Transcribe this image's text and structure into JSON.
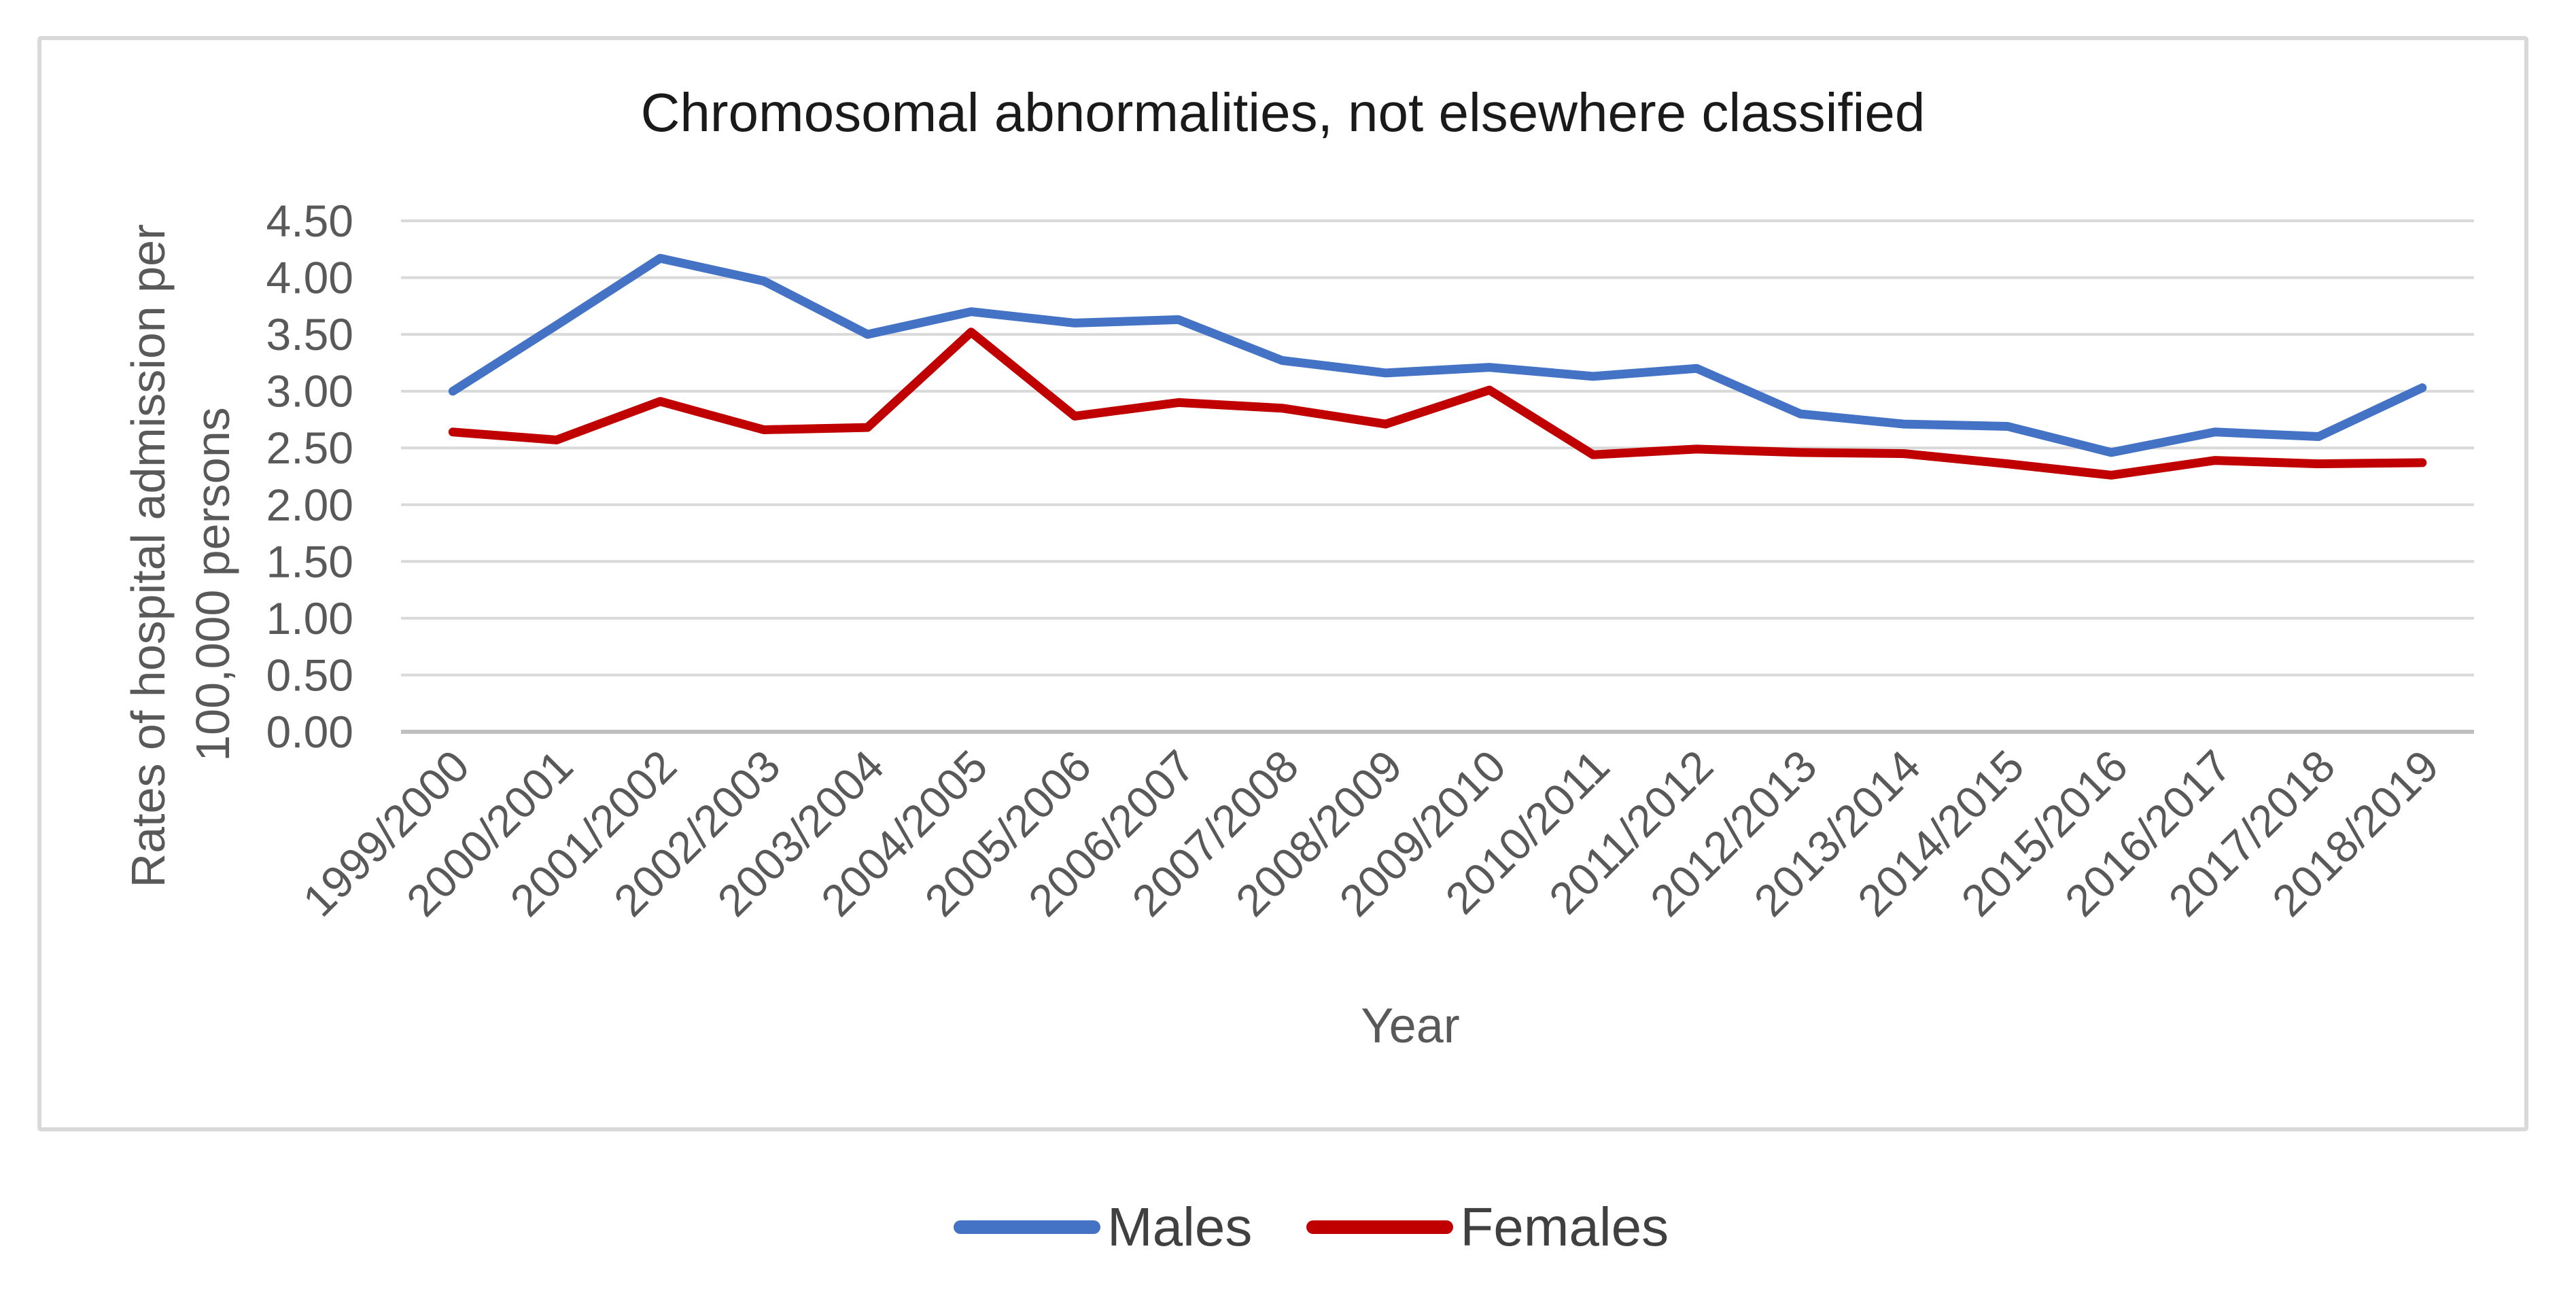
{
  "chart_data": {
    "type": "line",
    "title": "Chromosomal abnormalities, not elsewhere classified",
    "xlabel": "Year",
    "ylabel": "Rates of hospital admission per 100,000 persons",
    "ylabel_lines": [
      "Rates of hospital admission per",
      "100,000 persons"
    ],
    "categories": [
      "1999/2000",
      "2000/2001",
      "2001/2002",
      "2002/2003",
      "2003/2004",
      "2004/2005",
      "2005/2006",
      "2006/2007",
      "2007/2008",
      "2008/2009",
      "2009/2010",
      "2010/2011",
      "2011/2012",
      "2012/2013",
      "2013/2014",
      "2014/2015",
      "2015/2016",
      "2016/2017",
      "2017/2018",
      "2018/2019"
    ],
    "series": [
      {
        "name": "Males",
        "color": "#4472C4",
        "values": [
          3.0,
          3.58,
          4.17,
          3.97,
          3.5,
          3.7,
          3.6,
          3.63,
          3.27,
          3.16,
          3.21,
          3.13,
          3.2,
          2.8,
          2.71,
          2.69,
          2.46,
          2.64,
          2.6,
          3.03
        ]
      },
      {
        "name": "Females",
        "color": "#C00000",
        "values": [
          2.64,
          2.57,
          2.91,
          2.66,
          2.68,
          3.52,
          2.78,
          2.9,
          2.85,
          2.71,
          3.01,
          2.44,
          2.49,
          2.46,
          2.45,
          2.36,
          2.26,
          2.39,
          2.36,
          2.37
        ]
      }
    ],
    "ylim": [
      0,
      4.5
    ],
    "ytick_step": 0.5,
    "yticks": [
      "0.00",
      "0.50",
      "1.00",
      "1.50",
      "2.00",
      "2.50",
      "3.00",
      "3.50",
      "4.00",
      "4.50"
    ],
    "grid": true,
    "legend_position": "bottom",
    "style": {
      "grid_color": "#D9D9D9",
      "axis_color": "#BFBFBF",
      "tick_label_color": "#595959",
      "title_color": "#1A1A1A",
      "axis_title_color": "#595959",
      "legend_text_color": "#404040",
      "figure_border_color": "#D9D9D9",
      "background": "#FFFFFF"
    }
  }
}
